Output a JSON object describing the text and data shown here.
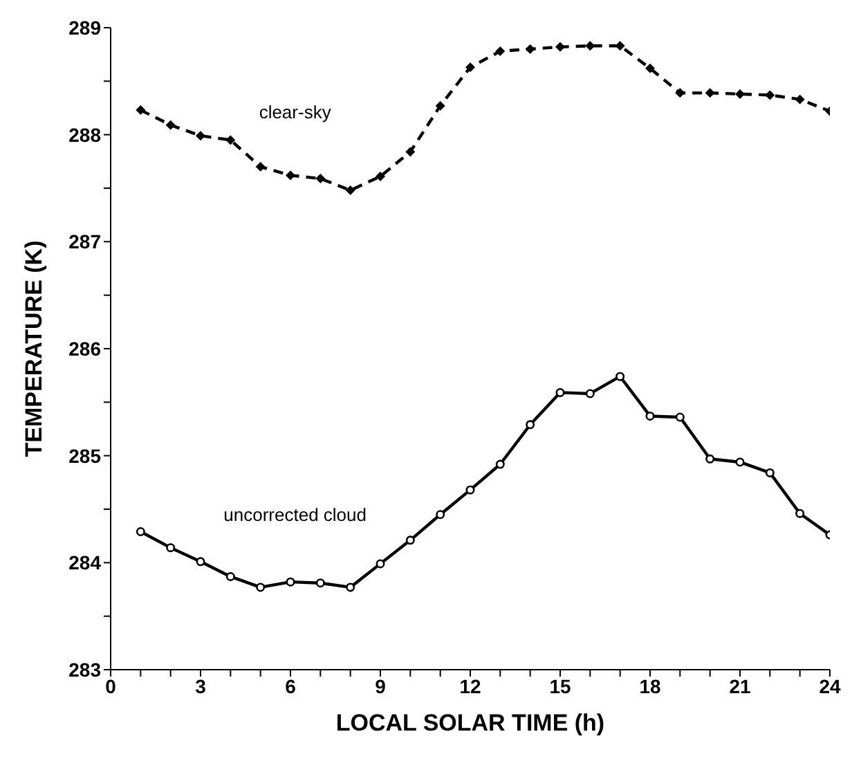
{
  "chart_data": {
    "type": "line",
    "xlabel": "LOCAL SOLAR TIME (h)",
    "ylabel": "TEMPERATURE (K)",
    "x": [
      1,
      2,
      3,
      4,
      5,
      6,
      7,
      8,
      9,
      10,
      11,
      12,
      13,
      14,
      15,
      16,
      17,
      18,
      19,
      20,
      21,
      22,
      23,
      24
    ],
    "series": [
      {
        "name": "clear-sky",
        "color": "#000000",
        "line_style": "dashed",
        "marker": "diamond",
        "values": [
          288.23,
          288.09,
          287.99,
          287.95,
          287.7,
          287.62,
          287.59,
          287.48,
          287.61,
          287.84,
          288.27,
          288.63,
          288.78,
          288.8,
          288.82,
          288.83,
          288.83,
          288.62,
          288.39,
          288.39,
          288.38,
          288.37,
          288.33,
          288.22
        ]
      },
      {
        "name": "uncorrected cloud",
        "color": "#000000",
        "line_style": "solid",
        "marker": "circle",
        "values": [
          284.29,
          284.14,
          284.01,
          283.87,
          283.77,
          283.82,
          283.81,
          283.77,
          283.99,
          284.21,
          284.45,
          284.68,
          284.92,
          285.29,
          285.59,
          285.58,
          285.74,
          285.37,
          285.36,
          284.97,
          284.94,
          284.84,
          284.46,
          284.26
        ]
      }
    ],
    "xlim": [
      0,
      24
    ],
    "xticks": [
      0,
      {
        "value": 1,
        "label": null
      },
      {
        "value": 2,
        "label": null
      },
      3,
      {
        "value": 4,
        "label": null
      },
      {
        "value": 5,
        "label": null
      },
      6,
      {
        "value": 7,
        "label": null
      },
      {
        "value": 8,
        "label": null
      },
      9,
      {
        "value": 10,
        "label": null
      },
      {
        "value": 11,
        "label": null
      },
      12,
      {
        "value": 13,
        "label": null
      },
      {
        "value": 14,
        "label": null
      },
      15,
      {
        "value": 16,
        "label": null
      },
      {
        "value": 17,
        "label": null
      },
      18,
      {
        "value": 19,
        "label": null
      },
      {
        "value": 20,
        "label": null
      },
      21,
      {
        "value": 22,
        "label": null
      },
      {
        "value": 23,
        "label": null
      },
      24
    ],
    "ylim": [
      283,
      289
    ],
    "yticks": [
      283,
      {
        "value": 283.5,
        "label": null
      },
      284,
      {
        "value": 284.5,
        "label": null
      },
      285,
      {
        "value": 285.5,
        "label": null
      },
      286,
      {
        "value": 286.5,
        "label": null
      },
      287,
      {
        "value": 287.5,
        "label": null
      },
      288,
      {
        "value": 288.5,
        "label": null
      },
      289
    ],
    "grid": false,
    "legend": false
  }
}
